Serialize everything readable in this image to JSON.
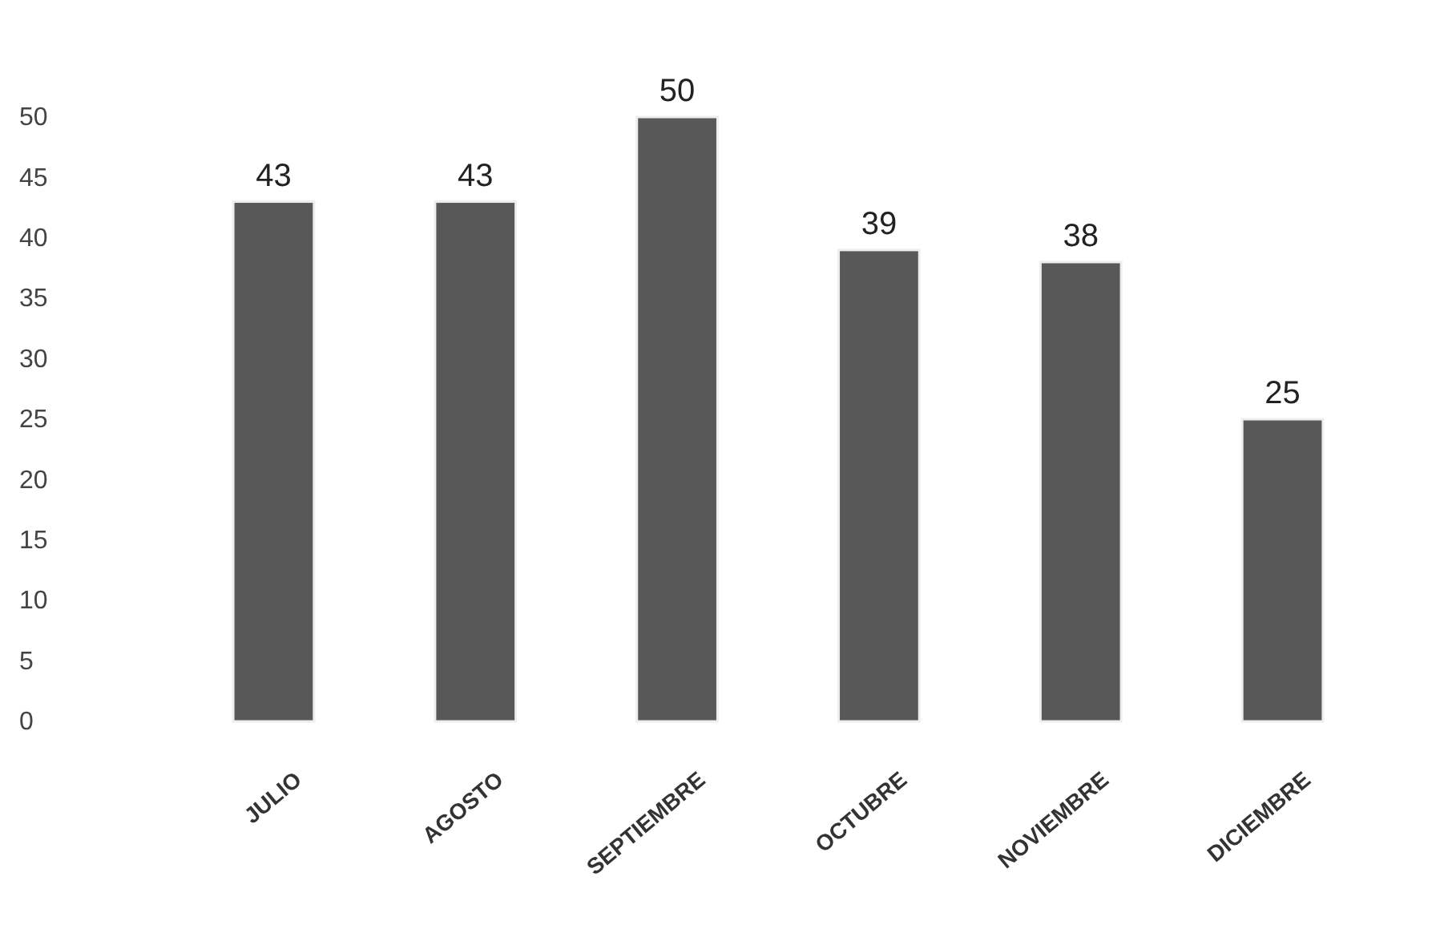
{
  "chart_data": {
    "type": "bar",
    "categories": [
      "JULIO",
      "AGOSTO",
      "SEPTIEMBRE",
      "OCTUBRE",
      "NOVIEMBRE",
      "DICIEMBRE"
    ],
    "values": [
      43,
      43,
      50,
      39,
      38,
      25
    ],
    "color": "#585858",
    "ylim": [
      0,
      50
    ],
    "yticks": [
      0,
      5,
      10,
      15,
      20,
      25,
      30,
      35,
      40,
      45,
      50
    ],
    "grid": false,
    "data_labels": true
  }
}
